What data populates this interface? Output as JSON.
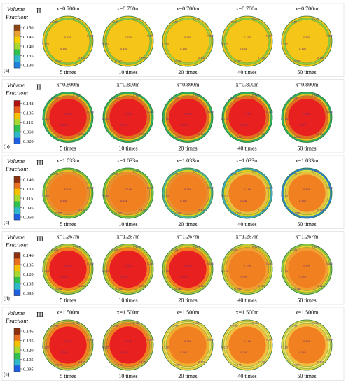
{
  "legend_title_line1": "Volume",
  "legend_title_line2": "Fraction:",
  "column_labels": [
    "5 times",
    "10 times",
    "20 times",
    "40 times",
    "50 times"
  ],
  "rows": [
    {
      "tag": "(a)",
      "regime": "II",
      "x_label": "x=0.700m",
      "ticks": [
        "0.150",
        "0.145",
        "0.140",
        "0.135",
        "0.130"
      ],
      "palette": [
        "#8b4513",
        "#e8a030",
        "#f4d000",
        "#a8d830",
        "#30c050",
        "#30b8c8",
        "#2080e0"
      ],
      "cells": [
        {
          "rings": [
            "#f5c518",
            "#7fc84a",
            "#f5c518"
          ],
          "core": "#f5c518",
          "contour": [
            "0.140",
            "0.145",
            "0.150"
          ]
        },
        {
          "rings": [
            "#f5c518",
            "#7fc84a",
            "#f5c518"
          ],
          "core": "#f5c518",
          "contour": [
            "0.140",
            "0.145",
            "0.150"
          ]
        },
        {
          "rings": [
            "#f5c518",
            "#a0d040",
            "#f5c518"
          ],
          "core": "#f5c518",
          "contour": [
            "0.140",
            "0.150"
          ]
        },
        {
          "rings": [
            "#f5c518",
            "#8ccc40",
            "#f5c518"
          ],
          "core": "#f5c518",
          "contour": [
            "0.140",
            "0.150"
          ]
        },
        {
          "rings": [
            "#f5c518",
            "#8ccc40",
            "#f5c518"
          ],
          "core": "#f5c518",
          "contour": [
            "0.140",
            "0.150"
          ]
        }
      ]
    },
    {
      "tag": "(b)",
      "regime": "II",
      "x_label": "x=0.800m",
      "ticks": [
        "0.148",
        "0.135",
        "0.115",
        "0.060",
        "0.020"
      ],
      "palette": [
        "#b01010",
        "#e86020",
        "#f4c000",
        "#a8d830",
        "#30c050",
        "#30b8c8",
        "#2060e0"
      ],
      "cells": [
        {
          "rings": [
            "#30b060",
            "#e8c020",
            "#e07020"
          ],
          "core": "#e82020",
          "contour": [
            "0.135",
            "0.148"
          ]
        },
        {
          "rings": [
            "#30b060",
            "#e8c020",
            "#e07020"
          ],
          "core": "#e82020",
          "contour": [
            "0.135",
            "0.148"
          ]
        },
        {
          "rings": [
            "#30b060",
            "#e8c020",
            "#e07020"
          ],
          "core": "#e82020",
          "contour": [
            "0.135",
            "0.148"
          ]
        },
        {
          "rings": [
            "#30b060",
            "#e8c020",
            "#e07020"
          ],
          "core": "#e82020",
          "contour": [
            "0.135",
            "0.148"
          ]
        },
        {
          "rings": [
            "#30b060",
            "#e8c020",
            "#e07020"
          ],
          "core": "#e82020",
          "contour": [
            "0.135",
            "0.148"
          ]
        }
      ]
    },
    {
      "tag": "(c)",
      "regime": "III",
      "x_label": "x=1.033m",
      "ticks": [
        "0.146",
        "0.133",
        "0.115",
        "0.095",
        "0.060"
      ],
      "palette": [
        "#8b3010",
        "#e87020",
        "#f4c000",
        "#a8d830",
        "#30c050",
        "#30b8c8",
        "#2060e0"
      ],
      "cells": [
        {
          "rings": [
            "#70c040",
            "#e8c020",
            "#e89030"
          ],
          "core": "#f08020",
          "contour": [
            "0.115",
            "0.133",
            "0.146"
          ]
        },
        {
          "rings": [
            "#70c040",
            "#e8c020",
            "#e89030"
          ],
          "core": "#f08020",
          "contour": [
            "0.115",
            "0.133",
            "0.146"
          ]
        },
        {
          "rings": [
            "#50b8a0",
            "#d8d020",
            "#e89030"
          ],
          "core": "#f08020",
          "contour": [
            "0.115",
            "0.133",
            "0.146"
          ]
        },
        {
          "rings": [
            "#40a8c0",
            "#d8d020",
            "#e8c040"
          ],
          "core": "#f08020",
          "contour": [
            "0.115",
            "0.133",
            "0.146"
          ]
        },
        {
          "rings": [
            "#3080d0",
            "#d8e040",
            "#e8c040"
          ],
          "core": "#f08020",
          "contour": [
            "0.095",
            "0.133",
            "0.146"
          ]
        }
      ]
    },
    {
      "tag": "(d)",
      "regime": "III",
      "x_label": "x=1.267m",
      "ticks": [
        "0.146",
        "0.135",
        "0.120",
        "0.105",
        "0.095"
      ],
      "palette": [
        "#8b3010",
        "#e87020",
        "#f4c000",
        "#a8d830",
        "#30c050",
        "#30b8c8",
        "#2060e0"
      ],
      "cells": [
        {
          "rings": [
            "#a8c840",
            "#e8c020",
            "#f08020"
          ],
          "core": "#e82020",
          "contour": [
            "0.135",
            "0.146"
          ]
        },
        {
          "rings": [
            "#a8c840",
            "#e8c020",
            "#f08020"
          ],
          "core": "#e82020",
          "contour": [
            "0.135",
            "0.146"
          ]
        },
        {
          "rings": [
            "#a8c840",
            "#e8c020",
            "#f08020"
          ],
          "core": "#e82020",
          "contour": [
            "0.135",
            "0.146"
          ]
        },
        {
          "rings": [
            "#c0d040",
            "#e8c020",
            "#f0a030"
          ],
          "core": "#f08020",
          "contour": [
            "0.135",
            "0.146"
          ]
        },
        {
          "rings": [
            "#90c840",
            "#e8d030",
            "#f0a030"
          ],
          "core": "#f08020",
          "contour": [
            "0.120",
            "0.146"
          ]
        }
      ]
    },
    {
      "tag": "(e)",
      "regime": "III",
      "x_label": "x=1.500m",
      "ticks": [
        "0.146",
        "0.135",
        "0.120",
        "0.105",
        "0.095"
      ],
      "palette": [
        "#8b3010",
        "#e87020",
        "#f4c000",
        "#a8d830",
        "#30c050",
        "#30b8c8",
        "#2060e0"
      ],
      "cells": [
        {
          "rings": [
            "#c8c040",
            "#f0a030",
            "#f08020"
          ],
          "core": "#e82020",
          "contour": [
            "0.135",
            "0.146"
          ]
        },
        {
          "rings": [
            "#c8c040",
            "#f0a030",
            "#f08020"
          ],
          "core": "#e82020",
          "contour": [
            "0.135",
            "0.146"
          ]
        },
        {
          "rings": [
            "#f0d040",
            "#e8e060",
            "#f0b030"
          ],
          "core": "#f08020",
          "contour": [
            "0.120",
            "0.146"
          ]
        },
        {
          "rings": [
            "#f0d040",
            "#e8e060",
            "#f0c040"
          ],
          "core": "#f08020",
          "contour": [
            "0.120",
            "0.146"
          ]
        },
        {
          "rings": [
            "#d8d040",
            "#e8e870",
            "#f0c040"
          ],
          "core": "#f08020",
          "contour": [
            "0.120",
            "0.146"
          ]
        }
      ]
    }
  ]
}
